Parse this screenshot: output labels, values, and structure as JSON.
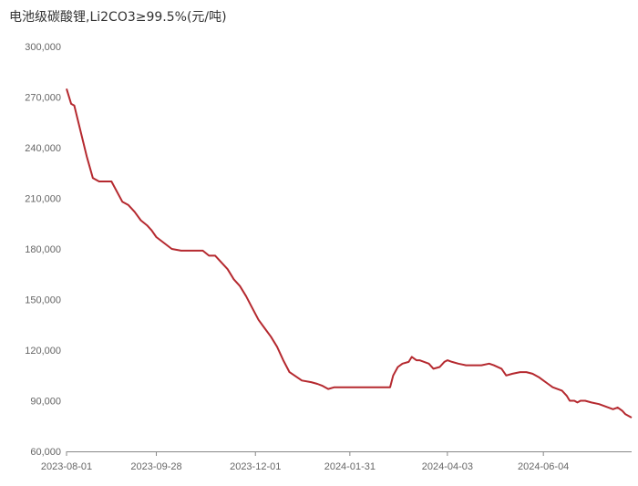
{
  "chart_data": {
    "type": "line",
    "title": "电池级碳酸锂,Li2CO3≥99.5%(元/吨)",
    "xlabel": "",
    "ylabel": "",
    "ylim": [
      60000,
      300000
    ],
    "yticks": [
      "60,000",
      "90,000",
      "120,000",
      "150,000",
      "180,000",
      "210,000",
      "240,000",
      "270,000",
      "300,000"
    ],
    "xticks": [
      "2023-08-01",
      "2023-09-28",
      "2023-12-01",
      "2024-01-31",
      "2024-04-03",
      "2024-06-04"
    ],
    "xlim": [
      "2023-08-01",
      "2024-07-31"
    ],
    "grid": false,
    "line_color": "#b5292f",
    "series": [
      {
        "x": [
          "2023-08-01",
          "2023-08-04",
          "2023-08-06",
          "2023-08-10",
          "2023-08-14",
          "2023-08-18",
          "2023-08-22",
          "2023-08-26",
          "2023-08-30",
          "2023-09-06",
          "2023-09-10",
          "2023-09-14",
          "2023-09-18",
          "2023-09-22",
          "2023-09-25",
          "2023-09-28",
          "2023-10-08",
          "2023-10-14",
          "2023-10-17",
          "2023-10-20",
          "2023-10-24",
          "2023-10-28",
          "2023-11-01",
          "2023-11-05",
          "2023-11-09",
          "2023-11-13",
          "2023-11-17",
          "2023-11-21",
          "2023-11-25",
          "2023-11-29",
          "2023-12-03",
          "2023-12-07",
          "2023-12-11",
          "2023-12-15",
          "2023-12-19",
          "2023-12-23",
          "2023-12-31",
          "2024-01-06",
          "2024-01-10",
          "2024-01-13",
          "2024-01-17",
          "2024-01-21",
          "2024-01-31",
          "2024-02-05",
          "2024-02-10",
          "2024-02-23",
          "2024-02-26",
          "2024-02-28",
          "2024-03-02",
          "2024-03-05",
          "2024-03-09",
          "2024-03-11",
          "2024-03-14",
          "2024-03-16",
          "2024-03-22",
          "2024-03-25",
          "2024-03-29",
          "2024-04-01",
          "2024-04-03",
          "2024-04-06",
          "2024-04-10",
          "2024-04-15",
          "2024-04-20",
          "2024-04-25",
          "2024-04-30",
          "2024-05-03",
          "2024-05-08",
          "2024-05-11",
          "2024-05-15",
          "2024-05-20",
          "2024-05-24",
          "2024-05-28",
          "2024-06-01",
          "2024-06-04",
          "2024-06-07",
          "2024-06-10",
          "2024-06-13",
          "2024-06-16",
          "2024-06-19",
          "2024-06-21",
          "2024-06-24",
          "2024-06-26",
          "2024-06-28",
          "2024-07-01",
          "2024-07-05",
          "2024-07-10",
          "2024-07-13",
          "2024-07-16",
          "2024-07-19",
          "2024-07-22",
          "2024-07-25",
          "2024-07-27",
          "2024-07-29",
          "2024-07-31"
        ],
        "values": [
          275000,
          266000,
          265000,
          250000,
          235000,
          222000,
          220000,
          220000,
          220000,
          208000,
          206000,
          202000,
          197000,
          194000,
          191000,
          187000,
          180000,
          179000,
          179000,
          179000,
          179000,
          179000,
          176000,
          176000,
          172000,
          168000,
          162000,
          158000,
          152000,
          145000,
          138000,
          133000,
          128000,
          122000,
          114000,
          107000,
          102000,
          101000,
          100000,
          99000,
          97000,
          98000,
          98000,
          98000,
          98000,
          98000,
          98000,
          105000,
          110000,
          112000,
          113000,
          116000,
          114000,
          114000,
          112000,
          109000,
          110000,
          113000,
          114000,
          113000,
          112000,
          111000,
          111000,
          111000,
          112000,
          111000,
          109000,
          105000,
          106000,
          107000,
          107000,
          106000,
          104000,
          102000,
          100000,
          98000,
          97000,
          96000,
          93000,
          90000,
          90000,
          89000,
          90000,
          90000,
          89000,
          88000,
          87000,
          86000,
          85000,
          86000,
          84000,
          82000,
          81000,
          80000
        ]
      }
    ]
  }
}
